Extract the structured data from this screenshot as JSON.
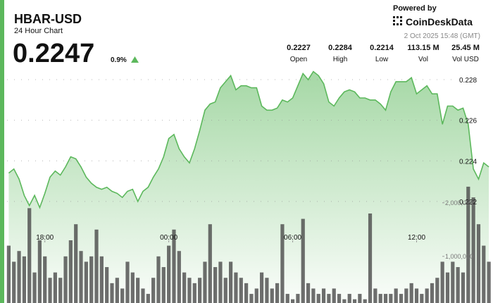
{
  "header": {
    "symbol": "HBAR-USD",
    "subtitle": "24 Hour Chart",
    "price": "0.2247",
    "change": "0.9%",
    "powered_by": "Powered by",
    "brand": "CoinDeskData",
    "timestamp": "2 Oct 2025 15:48 (GMT)"
  },
  "stats": [
    {
      "value": "0.2227",
      "label": "Open"
    },
    {
      "value": "0.2284",
      "label": "High"
    },
    {
      "value": "0.2214",
      "label": "Low"
    },
    {
      "value": "113.15 M",
      "label": "Vol"
    },
    {
      "value": "25.45 M",
      "label": "Vol USD"
    }
  ],
  "chart_data": [
    {
      "type": "area",
      "color": "#5cb85c",
      "grid": true,
      "xlim": [
        16.1,
        39.7
      ],
      "xticks": [
        {
          "value": 18,
          "label": "18:00"
        },
        {
          "value": 24,
          "label": "00:00"
        },
        {
          "value": 30,
          "label": "06:00"
        },
        {
          "value": 36,
          "label": "12:00"
        }
      ],
      "ylim": [
        0.217,
        0.2288
      ],
      "yticks": [
        0.228,
        0.226,
        0.224,
        0.222
      ],
      "x": [
        16.25,
        16.5,
        16.75,
        17,
        17.25,
        17.5,
        17.75,
        18,
        18.25,
        18.5,
        18.75,
        19,
        19.25,
        19.5,
        19.75,
        20,
        20.25,
        20.5,
        20.75,
        21,
        21.25,
        21.5,
        21.75,
        22,
        22.25,
        22.5,
        22.75,
        23,
        23.25,
        23.5,
        23.75,
        24,
        24.25,
        24.5,
        24.75,
        25,
        25.25,
        25.5,
        25.75,
        26,
        26.25,
        26.5,
        26.75,
        27,
        27.25,
        27.5,
        27.75,
        28,
        28.25,
        28.5,
        28.75,
        29,
        29.25,
        29.5,
        29.75,
        30,
        30.25,
        30.5,
        30.75,
        31,
        31.25,
        31.5,
        31.75,
        32,
        32.25,
        32.5,
        32.75,
        33,
        33.25,
        33.5,
        33.75,
        34,
        34.25,
        34.5,
        34.75,
        35,
        35.25,
        35.5,
        35.75,
        36,
        36.25,
        36.5,
        36.75,
        37,
        37.25,
        37.5,
        37.75,
        38,
        38.25,
        38.5,
        38.75,
        39,
        39.25,
        39.5
      ],
      "values": [
        0.2234,
        0.2236,
        0.2231,
        0.2223,
        0.2218,
        0.2223,
        0.2217,
        0.2224,
        0.2232,
        0.2235,
        0.2233,
        0.2237,
        0.2242,
        0.2241,
        0.2237,
        0.2232,
        0.2229,
        0.2227,
        0.2226,
        0.2227,
        0.2225,
        0.2224,
        0.2222,
        0.2225,
        0.2226,
        0.222,
        0.2225,
        0.2227,
        0.2232,
        0.2236,
        0.2242,
        0.2251,
        0.2253,
        0.2246,
        0.2242,
        0.2239,
        0.2246,
        0.2255,
        0.2265,
        0.2268,
        0.2269,
        0.2276,
        0.2279,
        0.2282,
        0.2275,
        0.2277,
        0.2277,
        0.2276,
        0.2276,
        0.2267,
        0.2265,
        0.2265,
        0.2266,
        0.227,
        0.2269,
        0.2271,
        0.2277,
        0.2283,
        0.228,
        0.2284,
        0.2282,
        0.2278,
        0.2269,
        0.2267,
        0.2271,
        0.2274,
        0.2275,
        0.2274,
        0.2271,
        0.2271,
        0.227,
        0.227,
        0.2268,
        0.2265,
        0.2274,
        0.2279,
        0.2279,
        0.2279,
        0.2281,
        0.2273,
        0.2275,
        0.2277,
        0.2273,
        0.2273,
        0.2258,
        0.2267,
        0.2267,
        0.2265,
        0.2266,
        0.2258,
        0.2236,
        0.2231,
        0.2239,
        0.2237
      ]
    },
    {
      "type": "bar",
      "color": "#4a4a4a",
      "ylim": [
        130000,
        4600000
      ],
      "yticks": [
        {
          "value": 2000000,
          "label": "2,000,000"
        },
        {
          "value": 1000000,
          "label": "1,000,000"
        }
      ],
      "values": [
        1200000,
        900000,
        1100000,
        1000000,
        1900000,
        700000,
        1300000,
        1000000,
        600000,
        700000,
        600000,
        1000000,
        1300000,
        1600000,
        1100000,
        900000,
        1000000,
        1500000,
        1000000,
        800000,
        500000,
        600000,
        400000,
        900000,
        700000,
        600000,
        400000,
        300000,
        600000,
        1000000,
        800000,
        1200000,
        1500000,
        1100000,
        700000,
        600000,
        500000,
        600000,
        900000,
        1600000,
        800000,
        900000,
        600000,
        900000,
        700000,
        600000,
        500000,
        300000,
        400000,
        700000,
        600000,
        400000,
        500000,
        1600000,
        300000,
        200000,
        300000,
        1700000,
        500000,
        400000,
        300000,
        400000,
        300000,
        400000,
        300000,
        200000,
        300000,
        200000,
        300000,
        200000,
        1800000,
        400000,
        300000,
        300000,
        300000,
        400000,
        300000,
        400000,
        500000,
        400000,
        300000,
        400000,
        500000,
        600000,
        900000,
        700000,
        900000,
        800000,
        700000,
        2300000,
        2100000,
        1600000,
        1200000,
        900000
      ]
    }
  ]
}
